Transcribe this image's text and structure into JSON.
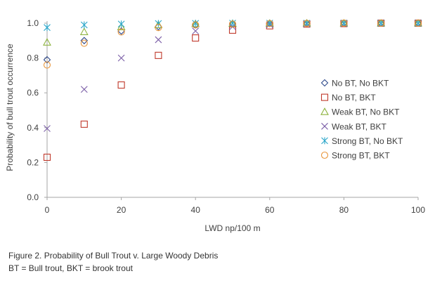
{
  "chart_data": {
    "type": "scatter",
    "title": "",
    "xlabel": "LWD np/100 m",
    "ylabel": "Probability of bull trout occurrence",
    "xlim": [
      0,
      100
    ],
    "ylim": [
      0,
      1.0
    ],
    "x_ticks": [
      0,
      20,
      40,
      60,
      80,
      100
    ],
    "y_ticks": [
      0.0,
      0.2,
      0.4,
      0.6,
      0.8,
      1.0
    ],
    "x_tick_labels": [
      "0",
      "20",
      "40",
      "60",
      "80",
      "100"
    ],
    "y_tick_labels": [
      "0.0",
      "0.2",
      "0.4",
      "0.6",
      "0.8",
      "1.0"
    ],
    "grid": false,
    "legend_position": "right",
    "x": [
      0,
      10,
      20,
      30,
      40,
      50,
      60,
      70,
      80,
      90,
      100
    ],
    "series": [
      {
        "name": "No BT, No BKT",
        "marker": "diamond",
        "color": "#2f4a8c",
        "values": [
          0.79,
          0.9,
          0.955,
          0.98,
          0.99,
          0.995,
          0.998,
          0.999,
          1.0,
          1.0,
          1.0
        ]
      },
      {
        "name": "No BT, BKT",
        "marker": "square",
        "color": "#c0392b",
        "values": [
          0.23,
          0.42,
          0.645,
          0.815,
          0.915,
          0.96,
          0.985,
          0.995,
          0.998,
          1.0,
          1.0
        ]
      },
      {
        "name": "Weak BT, No BKT",
        "marker": "triangle",
        "color": "#8db33f",
        "values": [
          0.89,
          0.95,
          0.978,
          0.99,
          0.996,
          0.998,
          0.999,
          1.0,
          1.0,
          1.0,
          1.0
        ]
      },
      {
        "name": "Weak BT,  BKT",
        "marker": "x",
        "color": "#7b5ea7",
        "values": [
          0.395,
          0.62,
          0.8,
          0.905,
          0.955,
          0.98,
          0.992,
          0.997,
          0.999,
          1.0,
          1.0
        ]
      },
      {
        "name": "Strong BT, No BKT",
        "marker": "asterisk",
        "color": "#2aa6c9",
        "values": [
          0.975,
          0.99,
          0.995,
          0.998,
          0.999,
          1.0,
          1.0,
          1.0,
          1.0,
          1.0,
          1.0
        ]
      },
      {
        "name": "Strong BT,  BKT",
        "marker": "circle",
        "color": "#e8953a",
        "values": [
          0.76,
          0.885,
          0.95,
          0.975,
          0.99,
          0.995,
          0.998,
          0.999,
          1.0,
          1.0,
          1.0
        ]
      }
    ]
  },
  "caption": {
    "line1": "Figure 2. Probability of Bull Trout v. Large Woody Debris",
    "line2": "BT = Bull trout, BKT = brook trout"
  },
  "colors": {
    "axis": "#a6a6a6",
    "text": "#404040"
  }
}
